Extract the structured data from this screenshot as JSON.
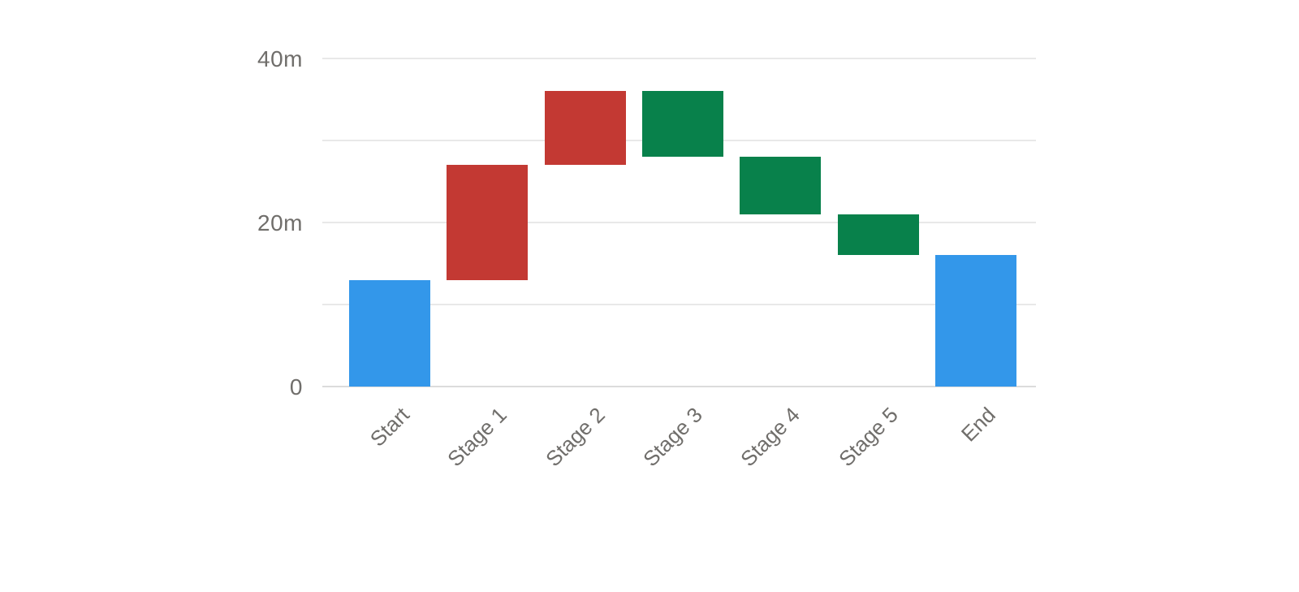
{
  "chart_data": {
    "type": "bar",
    "subtype": "waterfall",
    "title": "",
    "categories": [
      "Start",
      "Stage 1",
      "Stage 2",
      "Stage 3",
      "Stage 4",
      "Stage 5",
      "End"
    ],
    "series": [
      {
        "label": "Start",
        "kind": "total",
        "from": 0,
        "to": 13,
        "delta": 13
      },
      {
        "label": "Stage 1",
        "kind": "increase",
        "from": 13,
        "to": 27,
        "delta": 14
      },
      {
        "label": "Stage 2",
        "kind": "increase",
        "from": 27,
        "to": 36,
        "delta": 9
      },
      {
        "label": "Stage 3",
        "kind": "decrease",
        "from": 36,
        "to": 28,
        "delta": -8
      },
      {
        "label": "Stage 4",
        "kind": "decrease",
        "from": 28,
        "to": 21,
        "delta": -7
      },
      {
        "label": "Stage 5",
        "kind": "decrease",
        "from": 21,
        "to": 16,
        "delta": -5
      },
      {
        "label": "End",
        "kind": "total",
        "from": 0,
        "to": 16,
        "delta": 16
      }
    ],
    "y_axis": {
      "unit": "m",
      "min": 0,
      "max": 40,
      "tick_labels": [
        {
          "value": 40,
          "label": "40m"
        },
        {
          "value": 20,
          "label": "20m"
        },
        {
          "value": 0,
          "label": "0"
        }
      ],
      "gridline_values": [
        40,
        30,
        20,
        10,
        0
      ]
    },
    "x_axis": {
      "label_rotation_deg": -45
    },
    "colors": {
      "total": "#3397EA",
      "increase": "#C33933",
      "decrease": "#08814B",
      "gridline": "#E8E8E8",
      "zero_line": "#DCDCDC",
      "axis_text": "#706E6B"
    },
    "legend": "none",
    "grid": "horizontal"
  }
}
